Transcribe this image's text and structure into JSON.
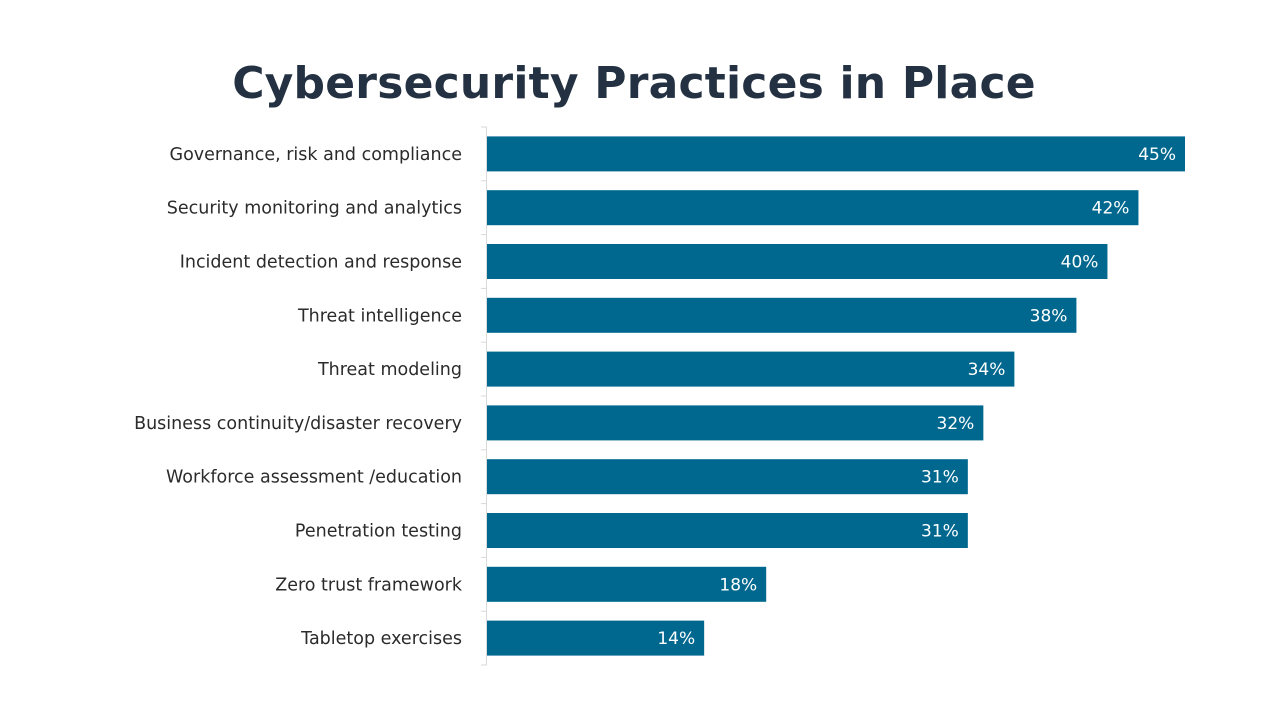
{
  "title": "Cybersecurity Practices in Place",
  "colors": {
    "bar": "#00688F",
    "title": "#233142",
    "axis": "#d9d9d9",
    "value_label": "#ffffff",
    "category_label": "#2b2b2b"
  },
  "chart_data": {
    "type": "bar",
    "orientation": "horizontal",
    "categories": [
      "Governance, risk and compliance",
      "Security monitoring and analytics",
      "Incident detection and response",
      "Threat intelligence",
      "Threat modeling",
      "Business continuity/disaster recovery",
      "Workforce assessment /education",
      "Penetration testing",
      "Zero trust framework",
      "Tabletop exercises"
    ],
    "values": [
      45,
      42,
      40,
      38,
      34,
      32,
      31,
      31,
      18,
      14
    ],
    "value_labels": [
      "45%",
      "42%",
      "40%",
      "38%",
      "34%",
      "32%",
      "31%",
      "31%",
      "18%",
      "14%"
    ],
    "title": "Cybersecurity Practices in Place",
    "xlabel": "",
    "ylabel": "",
    "xlim": [
      0,
      45
    ],
    "grid": false,
    "legend": "none"
  }
}
